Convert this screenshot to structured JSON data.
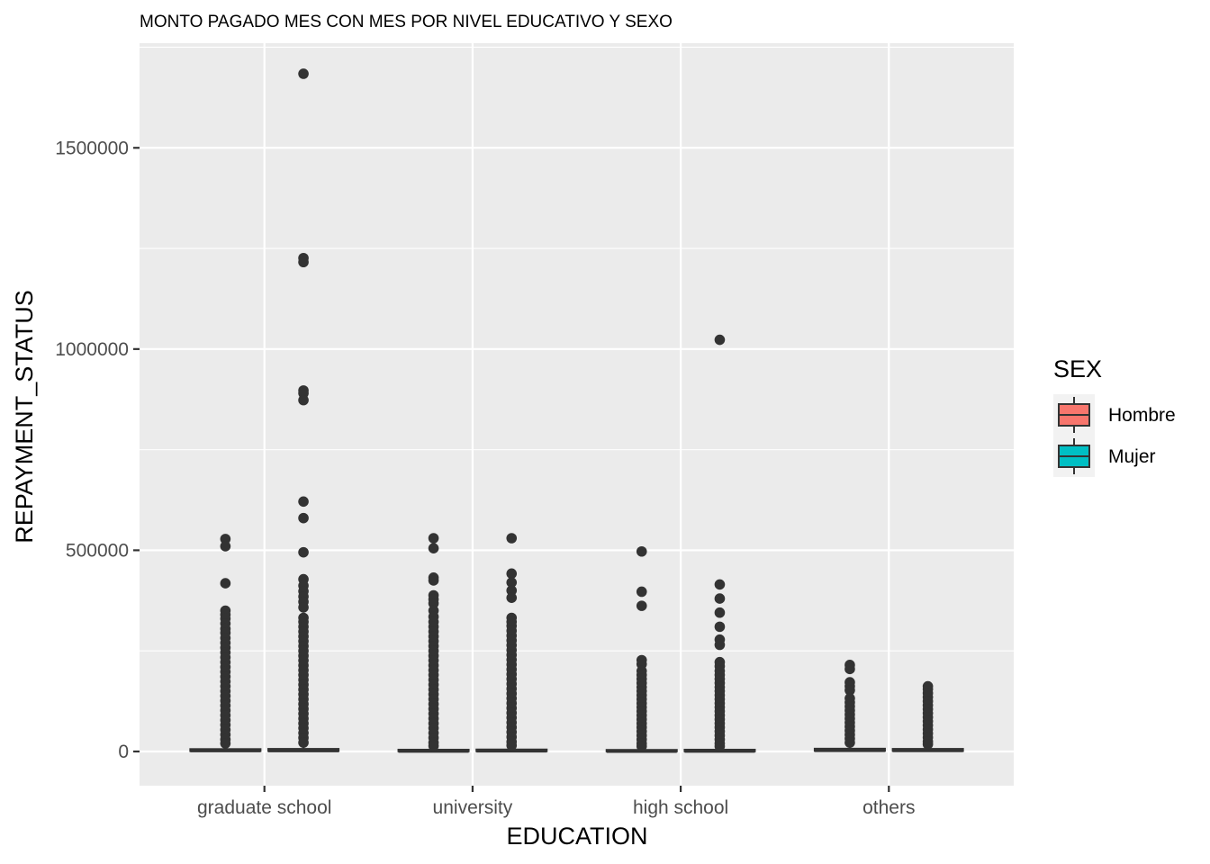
{
  "chart_data": {
    "type": "boxplot",
    "title": "MONTO PAGADO MES CON MES POR NIVEL EDUCATIVO Y SEXO",
    "xlabel": "EDUCATION",
    "ylabel": "REPAYMENT_STATUS",
    "categories": [
      "graduate school",
      "university",
      "high school",
      "others"
    ],
    "y_ticks": [
      0,
      500000,
      1000000,
      1500000
    ],
    "y_tick_labels": [
      "0",
      "500000",
      "1000000",
      "1500000"
    ],
    "ylim": [
      -85000,
      1760000
    ],
    "grid": true,
    "legend": {
      "title": "SEX",
      "placement": "right",
      "entries": [
        {
          "name": "Hombre",
          "color": "#f8766d"
        },
        {
          "name": "Mujer",
          "color": "#00bfc4"
        }
      ]
    },
    "series": [
      {
        "name": "Hombre",
        "color": "#f8766d",
        "boxes": [
          {
            "category": "graduate school",
            "q1": 1000,
            "median": 2500,
            "q3": 6000,
            "whisker_high": 14000,
            "outliers": [
              528000,
              510000,
              418000,
              350000,
              340000,
              330000,
              318000,
              305000,
              295000,
              282000,
              270000,
              258000,
              246000,
              234000,
              222000,
              210000,
              198000,
              186000,
              174000,
              162000,
              150000,
              138000,
              126000,
              114000,
              102000,
              90000,
              78000,
              66000,
              54000,
              42000,
              30000,
              20000
            ]
          },
          {
            "category": "university",
            "q1": 500,
            "median": 1500,
            "q3": 4500,
            "whisker_high": 11000,
            "outliers": [
              530000,
              505000,
              432000,
              425000,
              388000,
              378000,
              368000,
              350000,
              335000,
              322000,
              310000,
              298000,
              286000,
              274000,
              262000,
              250000,
              238000,
              226000,
              214000,
              202000,
              190000,
              178000,
              166000,
              154000,
              142000,
              130000,
              118000,
              106000,
              94000,
              82000,
              70000,
              58000,
              46000,
              34000,
              22000,
              14000
            ]
          },
          {
            "category": "high school",
            "q1": 300,
            "median": 1200,
            "q3": 4000,
            "whisker_high": 10000,
            "outliers": [
              497000,
              397000,
              362000,
              227000,
              217000,
              200000,
              190000,
              180000,
              170000,
              160000,
              150000,
              140000,
              130000,
              120000,
              110000,
              100000,
              90000,
              80000,
              70000,
              60000,
              50000,
              40000,
              30000,
              20000,
              13000
            ]
          },
          {
            "category": "others",
            "q1": 1500,
            "median": 3000,
            "q3": 7000,
            "whisker_high": 16000,
            "outliers": [
              215000,
              205000,
              172000,
              162000,
              152000,
              132000,
              122000,
              112000,
              102000,
              92000,
              82000,
              72000,
              62000,
              52000,
              42000,
              32000,
              22000
            ]
          }
        ]
      },
      {
        "name": "Mujer",
        "color": "#00bfc4",
        "boxes": [
          {
            "category": "graduate school",
            "q1": 1000,
            "median": 2500,
            "q3": 6500,
            "whisker_high": 15000,
            "outliers": [
              1684000,
              1226000,
              1216000,
              897000,
              890000,
              873000,
              621000,
              580000,
              495000,
              428000,
              412000,
              398000,
              385000,
              372000,
              358000,
              332000,
              322000,
              310000,
              298000,
              286000,
              274000,
              262000,
              250000,
              238000,
              226000,
              214000,
              202000,
              190000,
              178000,
              166000,
              154000,
              142000,
              130000,
              118000,
              106000,
              94000,
              82000,
              70000,
              58000,
              46000,
              34000,
              22000
            ]
          },
          {
            "category": "university",
            "q1": 600,
            "median": 1800,
            "q3": 5000,
            "whisker_high": 12000,
            "outliers": [
              530000,
              442000,
              420000,
              400000,
              382000,
              332000,
              322000,
              312000,
              300000,
              288000,
              276000,
              264000,
              252000,
              240000,
              228000,
              216000,
              204000,
              192000,
              180000,
              168000,
              156000,
              144000,
              132000,
              120000,
              108000,
              96000,
              84000,
              72000,
              60000,
              48000,
              36000,
              24000,
              15000
            ]
          },
          {
            "category": "high school",
            "q1": 400,
            "median": 1500,
            "q3": 4500,
            "whisker_high": 11000,
            "outliers": [
              1023000,
              415000,
              380000,
              345000,
              310000,
              278000,
              265000,
              222000,
              212000,
              200000,
              190000,
              180000,
              170000,
              160000,
              150000,
              140000,
              130000,
              120000,
              110000,
              100000,
              90000,
              80000,
              70000,
              60000,
              50000,
              40000,
              30000,
              20000,
              13000
            ]
          },
          {
            "category": "others",
            "q1": 1200,
            "median": 2800,
            "q3": 6500,
            "whisker_high": 15000,
            "outliers": [
              162000,
              155000,
              145000,
              135000,
              125000,
              115000,
              105000,
              95000,
              85000,
              75000,
              65000,
              55000,
              45000,
              35000,
              25000,
              18000
            ]
          }
        ]
      }
    ]
  }
}
